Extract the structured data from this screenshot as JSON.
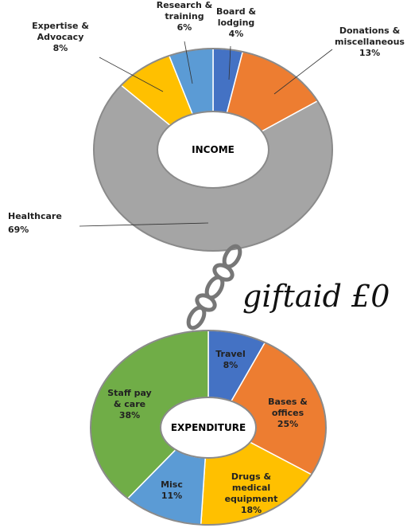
{
  "chart_data": [
    {
      "type": "donut",
      "center_label": "INCOME",
      "categories": [
        "Board &\nlodging",
        "Donations &\nmiscellaneous",
        "Healthcare",
        "Expertise &\nAdvocacy",
        "Research &\ntraining"
      ],
      "values": [
        4,
        13,
        69,
        8,
        6
      ],
      "value_labels": [
        "4%",
        "13%",
        "69%",
        "8%",
        "6%"
      ],
      "colors": [
        "#4472c4",
        "#ed7d31",
        "#a5a5a5",
        "#ffc000",
        "#5b9bd5"
      ]
    },
    {
      "type": "donut",
      "center_label": "EXPENDITURE",
      "categories": [
        "Travel",
        "Bases &\noffices",
        "Drugs &\nmedical\nequipment",
        "Misc",
        "Staff pay\n& care"
      ],
      "values": [
        8,
        25,
        18,
        11,
        38
      ],
      "value_labels": [
        "8%",
        "25%",
        "18%",
        "11%",
        "38%"
      ],
      "colors": [
        "#4472c4",
        "#ed7d31",
        "#ffc000",
        "#5b9bd5",
        "#70ad47"
      ]
    }
  ],
  "annotation": "giftaid £0"
}
